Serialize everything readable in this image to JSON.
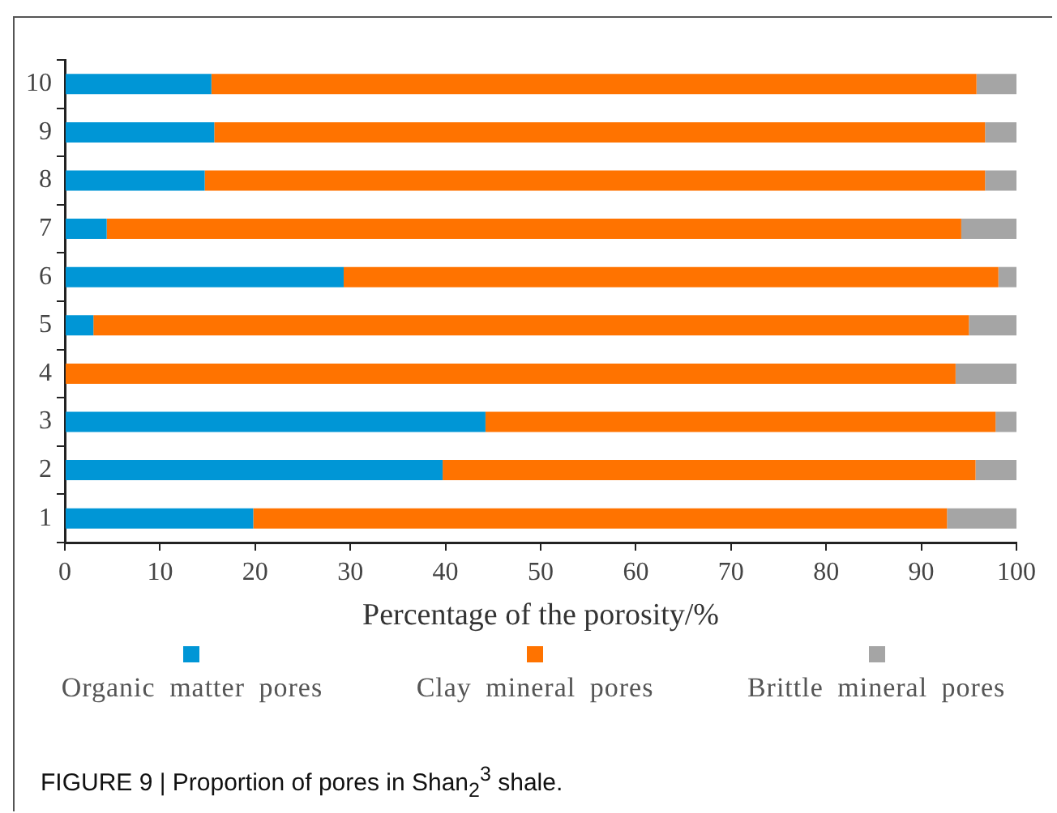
{
  "chart_data": {
    "type": "bar",
    "orientation": "horizontal",
    "stacked": true,
    "xlabel": "Percentage of the porosity/%",
    "categories": [
      "10",
      "9",
      "8",
      "7",
      "6",
      "5",
      "4",
      "3",
      "2",
      "1"
    ],
    "series": [
      {
        "name": "Organic matter pores",
        "color": "#0096d6",
        "values": [
          15.4,
          15.7,
          14.7,
          4.4,
          29.3,
          3.0,
          0,
          44.2,
          39.7,
          19.8
        ]
      },
      {
        "name": "Clay mineral pores",
        "color": "#ff7300",
        "values": [
          80.4,
          81.0,
          82.0,
          89.8,
          68.8,
          92.0,
          93.6,
          53.6,
          56.0,
          72.9
        ]
      },
      {
        "name": "Brittle mineral pores",
        "color": "#a5a5a5",
        "values": [
          4.2,
          3.3,
          3.3,
          5.8,
          1.9,
          5.0,
          6.4,
          2.2,
          4.3,
          7.3
        ]
      }
    ],
    "xlim": [
      0,
      100
    ],
    "xticks": [
      0,
      10,
      20,
      30,
      40,
      50,
      60,
      70,
      80,
      90,
      100
    ],
    "grid": false,
    "legend": "bottom",
    "annotations": [
      "FIGURE 9 | Proportion of pores in Shan$_{2}$$^{3}$ shale."
    ]
  }
}
